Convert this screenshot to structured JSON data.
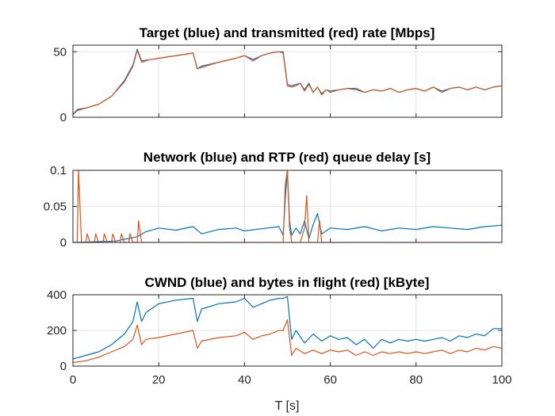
{
  "colors": {
    "blue": "#0072BD",
    "red": "#D95319"
  },
  "chart_data": [
    {
      "type": "line",
      "title": "Target (blue) and transmitted (red) rate [Mbps]",
      "xlim": [
        0,
        100
      ],
      "ylim": [
        0,
        55
      ],
      "xticks": [
        0,
        20,
        40,
        60,
        80,
        100
      ],
      "yticks": [
        0,
        50
      ],
      "grid": true,
      "series": [
        {
          "color": "#0072BD",
          "x": [
            0,
            1,
            3,
            6,
            9,
            12,
            14,
            15,
            16,
            18,
            22,
            26,
            28,
            29,
            30,
            34,
            38,
            40,
            42,
            44,
            46,
            48,
            49,
            50,
            51,
            52,
            53,
            54,
            55,
            56,
            57,
            58,
            59,
            60,
            62,
            64,
            66,
            68,
            70,
            72,
            74,
            76,
            78,
            80,
            82,
            84,
            86,
            88,
            90,
            92,
            94,
            96,
            98,
            100
          ],
          "y": [
            2,
            6,
            7,
            10,
            16,
            28,
            40,
            52,
            43,
            44,
            46,
            48,
            49,
            37,
            39,
            42,
            45,
            47,
            44,
            47,
            49,
            50,
            50,
            25,
            24,
            25,
            26,
            21,
            26,
            19,
            23,
            18,
            21,
            20,
            21,
            22,
            22,
            19,
            21,
            20,
            22,
            19,
            21,
            22,
            20,
            23,
            20,
            22,
            23,
            21,
            23,
            21,
            23,
            24
          ]
        },
        {
          "color": "#D95319",
          "x": [
            0,
            1,
            3,
            6,
            9,
            12,
            14,
            15,
            16,
            18,
            22,
            26,
            28,
            29,
            30,
            34,
            38,
            40,
            42,
            44,
            46,
            48,
            49,
            50,
            51,
            52,
            53,
            54,
            55,
            56,
            57,
            58,
            59,
            60,
            62,
            64,
            66,
            68,
            70,
            72,
            74,
            76,
            78,
            80,
            82,
            84,
            86,
            88,
            90,
            92,
            94,
            96,
            98,
            100
          ],
          "y": [
            2,
            5,
            7,
            10,
            16,
            27,
            39,
            51,
            42,
            44,
            46,
            48,
            49,
            37,
            38,
            42,
            45,
            47,
            43,
            47,
            49,
            50,
            49,
            24,
            23,
            24,
            26,
            20,
            25,
            19,
            23,
            17,
            21,
            19,
            21,
            22,
            21,
            19,
            21,
            20,
            22,
            19,
            21,
            22,
            20,
            23,
            19,
            22,
            23,
            21,
            23,
            21,
            23,
            24
          ]
        }
      ]
    },
    {
      "type": "line",
      "title": "Network (blue) and RTP (red) queue delay [s]",
      "xlim": [
        0,
        100
      ],
      "ylim": [
        0,
        0.1
      ],
      "xticks": [
        0,
        20,
        40,
        60,
        80,
        100
      ],
      "yticks": [
        0,
        0.05,
        0.1
      ],
      "ytick_labels": [
        "0",
        "0.05",
        "0.1"
      ],
      "grid": true,
      "series": [
        {
          "color": "#0072BD",
          "x": [
            0,
            10,
            15,
            17,
            20,
            24,
            28,
            30,
            34,
            38,
            40,
            44,
            48,
            49,
            49.5,
            50,
            50.5,
            51,
            52,
            53,
            54,
            55,
            56,
            57,
            58,
            60,
            64,
            68,
            72,
            76,
            80,
            84,
            88,
            92,
            96,
            100
          ],
          "y": [
            0,
            0.002,
            0.008,
            0.015,
            0.02,
            0.017,
            0.022,
            0.012,
            0.018,
            0.02,
            0.016,
            0.019,
            0.022,
            0.01,
            0.06,
            0.1,
            0.03,
            0.01,
            0.02,
            0.012,
            0.03,
            0.005,
            0.025,
            0.04,
            0.012,
            0.02,
            0.018,
            0.022,
            0.016,
            0.02,
            0.018,
            0.022,
            0.02,
            0.018,
            0.022,
            0.024
          ]
        },
        {
          "color": "#D95319",
          "x": [
            0,
            1,
            1.3,
            2,
            3,
            3.3,
            4,
            5,
            5.3,
            6,
            7,
            7.3,
            8,
            9,
            9.3,
            10,
            11,
            11.3,
            12,
            13,
            13.3,
            14,
            15,
            15.3,
            16,
            49,
            49.5,
            50,
            50.5,
            51,
            53,
            54,
            54.5,
            55,
            57,
            57.5,
            58,
            100
          ],
          "y": [
            0,
            0,
            0.1,
            0,
            0,
            0.012,
            0,
            0,
            0.012,
            0,
            0,
            0.012,
            0,
            0,
            0.012,
            0,
            0,
            0.012,
            0,
            0,
            0.012,
            0,
            0,
            0.03,
            0,
            0,
            0.08,
            0.1,
            0.02,
            0,
            0,
            0.02,
            0.065,
            0,
            0,
            0.03,
            0,
            0
          ]
        }
      ]
    },
    {
      "type": "line",
      "title": "CWND (blue) and bytes in flight (red) [kByte]",
      "xlim": [
        0,
        100
      ],
      "ylim": [
        0,
        400
      ],
      "xticks": [
        0,
        20,
        40,
        60,
        80,
        100
      ],
      "yticks": [
        0,
        200,
        400
      ],
      "xlabel": "T [s]",
      "grid": true,
      "series": [
        {
          "color": "#0072BD",
          "x": [
            0,
            3,
            6,
            9,
            12,
            14,
            15,
            16,
            17,
            20,
            24,
            28,
            29,
            30,
            34,
            38,
            40,
            42,
            44,
            46,
            48,
            49,
            50,
            51,
            52,
            54,
            56,
            58,
            60,
            62,
            64,
            66,
            68,
            70,
            72,
            74,
            76,
            78,
            80,
            82,
            84,
            86,
            88,
            90,
            92,
            94,
            96,
            98,
            100
          ],
          "y": [
            40,
            60,
            80,
            120,
            180,
            250,
            360,
            250,
            300,
            350,
            370,
            380,
            250,
            320,
            350,
            360,
            380,
            330,
            350,
            370,
            380,
            380,
            390,
            150,
            200,
            130,
            180,
            140,
            170,
            150,
            160,
            120,
            150,
            100,
            150,
            130,
            150,
            140,
            150,
            140,
            150,
            160,
            140,
            170,
            160,
            180,
            170,
            210,
            210
          ]
        },
        {
          "color": "#D95319",
          "x": [
            0,
            3,
            6,
            9,
            12,
            14,
            15,
            16,
            17,
            20,
            24,
            28,
            29,
            30,
            34,
            38,
            40,
            42,
            44,
            46,
            48,
            49,
            50,
            51,
            52,
            54,
            56,
            58,
            60,
            62,
            64,
            66,
            68,
            70,
            72,
            74,
            76,
            78,
            80,
            82,
            84,
            86,
            88,
            90,
            92,
            94,
            96,
            98,
            100
          ],
          "y": [
            20,
            30,
            50,
            80,
            110,
            150,
            230,
            120,
            150,
            160,
            180,
            200,
            100,
            140,
            160,
            170,
            190,
            150,
            170,
            180,
            200,
            200,
            260,
            60,
            100,
            70,
            90,
            70,
            90,
            80,
            90,
            60,
            80,
            60,
            80,
            70,
            80,
            70,
            80,
            70,
            80,
            90,
            70,
            90,
            80,
            100,
            90,
            110,
            100
          ]
        }
      ]
    }
  ]
}
